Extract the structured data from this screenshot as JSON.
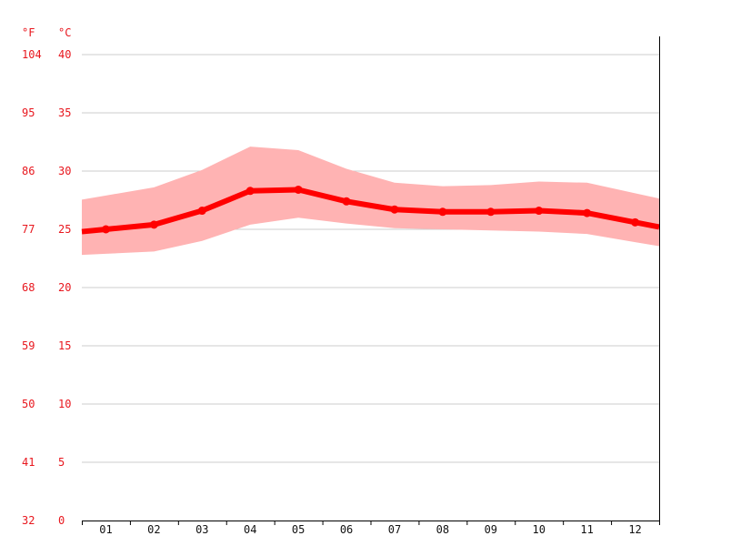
{
  "chart_data": {
    "type": "line",
    "title": "",
    "xlabel": "",
    "ylabel": "",
    "unit_f_label": "°F",
    "unit_c_label": "°C",
    "categories": [
      "01",
      "02",
      "03",
      "04",
      "05",
      "06",
      "07",
      "08",
      "09",
      "10",
      "11",
      "12"
    ],
    "y_ticks_c": [
      "0",
      "5",
      "10",
      "15",
      "20",
      "25",
      "30",
      "35",
      "40"
    ],
    "y_ticks_f": [
      "32",
      "41",
      "50",
      "59",
      "68",
      "77",
      "86",
      "95",
      "104"
    ],
    "ylim": [
      0,
      40
    ],
    "grid": true,
    "series": [
      {
        "values": [
          25.0,
          25.4,
          26.6,
          28.3,
          28.4,
          27.4,
          26.7,
          26.5,
          26.5,
          26.6,
          26.4,
          25.6
        ],
        "color": "#ff0000"
      }
    ],
    "band": {
      "upper": [
        27.9,
        28.6,
        30.1,
        32.1,
        31.8,
        30.2,
        29.0,
        28.7,
        28.8,
        29.1,
        29.0,
        28.1
      ],
      "lower": [
        22.9,
        23.1,
        24.0,
        25.4,
        26.0,
        25.5,
        25.1,
        25.0,
        24.9,
        24.8,
        24.6,
        23.9
      ],
      "color": "#ffb3b3"
    },
    "colors": {
      "axis_labels": "#e8171e",
      "grid": "#cccccc",
      "axis": "#000000"
    }
  }
}
